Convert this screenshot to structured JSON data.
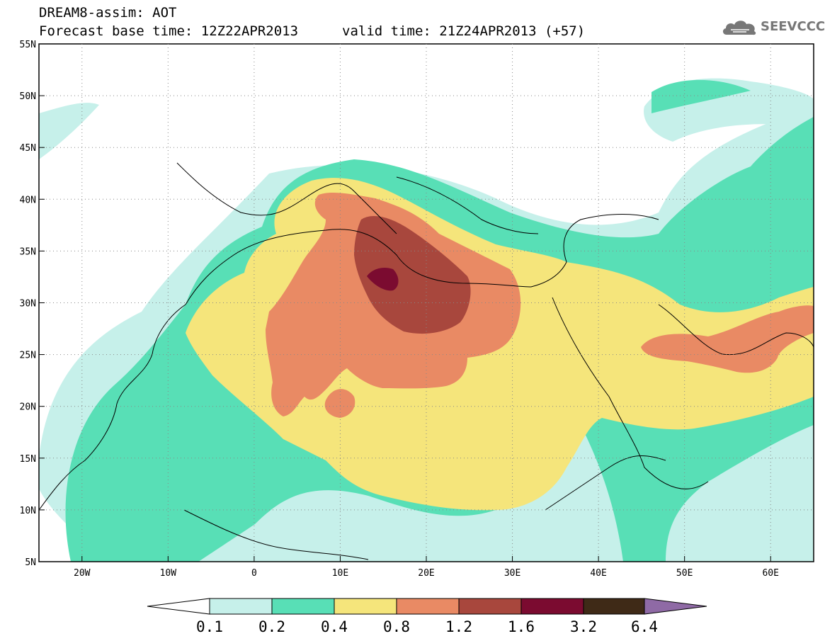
{
  "header": {
    "line1": "DREAM8-assim: AOT",
    "line2_base": "Forecast base time: 12Z22APR2013",
    "line2_valid": "valid time: 21Z24APR2013 (+57)",
    "logo_text": "SEEVCCC",
    "logo_icon": "cloud-icon"
  },
  "map": {
    "lon_range": [
      -25,
      65
    ],
    "lat_range": [
      5,
      55
    ],
    "lon_ticks": [
      {
        "value": -20,
        "label": "20W"
      },
      {
        "value": -10,
        "label": "10W"
      },
      {
        "value": 0,
        "label": "0"
      },
      {
        "value": 10,
        "label": "10E"
      },
      {
        "value": 20,
        "label": "20E"
      },
      {
        "value": 30,
        "label": "30E"
      },
      {
        "value": 40,
        "label": "40E"
      },
      {
        "value": 50,
        "label": "50E"
      },
      {
        "value": 60,
        "label": "60E"
      }
    ],
    "lat_ticks": [
      {
        "value": 5,
        "label": "5N"
      },
      {
        "value": 10,
        "label": "10N"
      },
      {
        "value": 15,
        "label": "15N"
      },
      {
        "value": 20,
        "label": "20N"
      },
      {
        "value": 25,
        "label": "25N"
      },
      {
        "value": 30,
        "label": "30N"
      },
      {
        "value": 35,
        "label": "35N"
      },
      {
        "value": 40,
        "label": "40N"
      },
      {
        "value": 45,
        "label": "45N"
      },
      {
        "value": 50,
        "label": "50N"
      },
      {
        "value": 55,
        "label": "55N"
      }
    ],
    "grid": "dotted"
  },
  "colorbar": {
    "labels": [
      "0.1",
      "0.2",
      "0.4",
      "0.8",
      "1.2",
      "1.6",
      "3.2",
      "6.4"
    ],
    "colors": [
      "#ffffff",
      "#c6f0ea",
      "#58dfb6",
      "#f5e57b",
      "#e98a64",
      "#a8473d",
      "#7b0b30",
      "#3f2a17",
      "#8f6aa5"
    ]
  }
}
